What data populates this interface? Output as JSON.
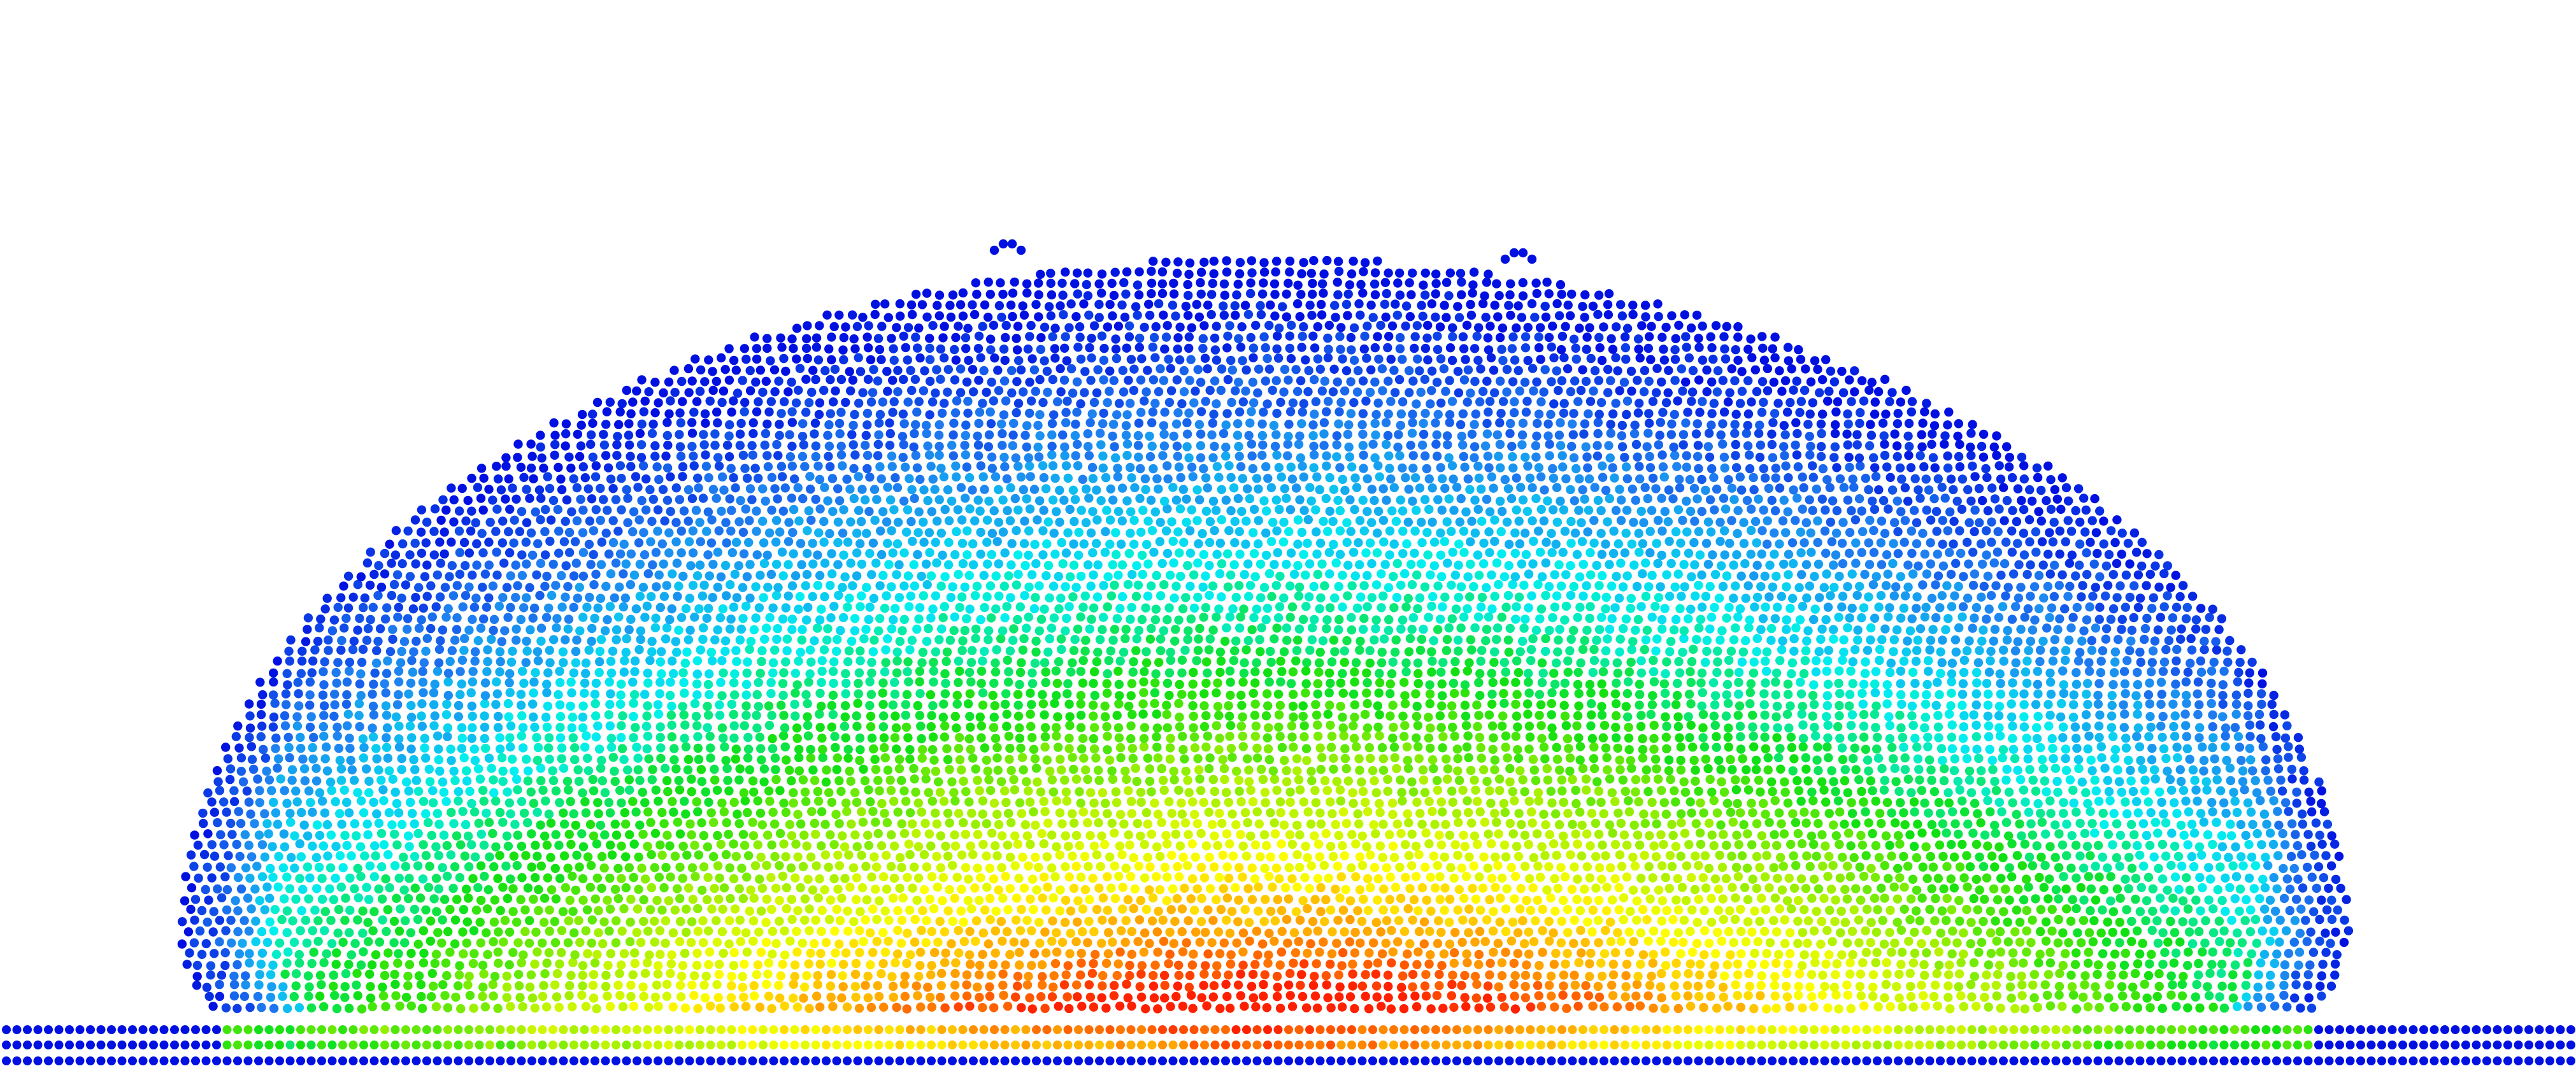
{
  "scene": {
    "subject": "particle-droplet-on-substrate",
    "background_color": "#ffffff",
    "colormap": [
      "#0010e0",
      "#1f7ff0",
      "#00f0f0",
      "#10e010",
      "#a0f000",
      "#ffff00",
      "#ff9900",
      "#ff2000"
    ]
  }
}
